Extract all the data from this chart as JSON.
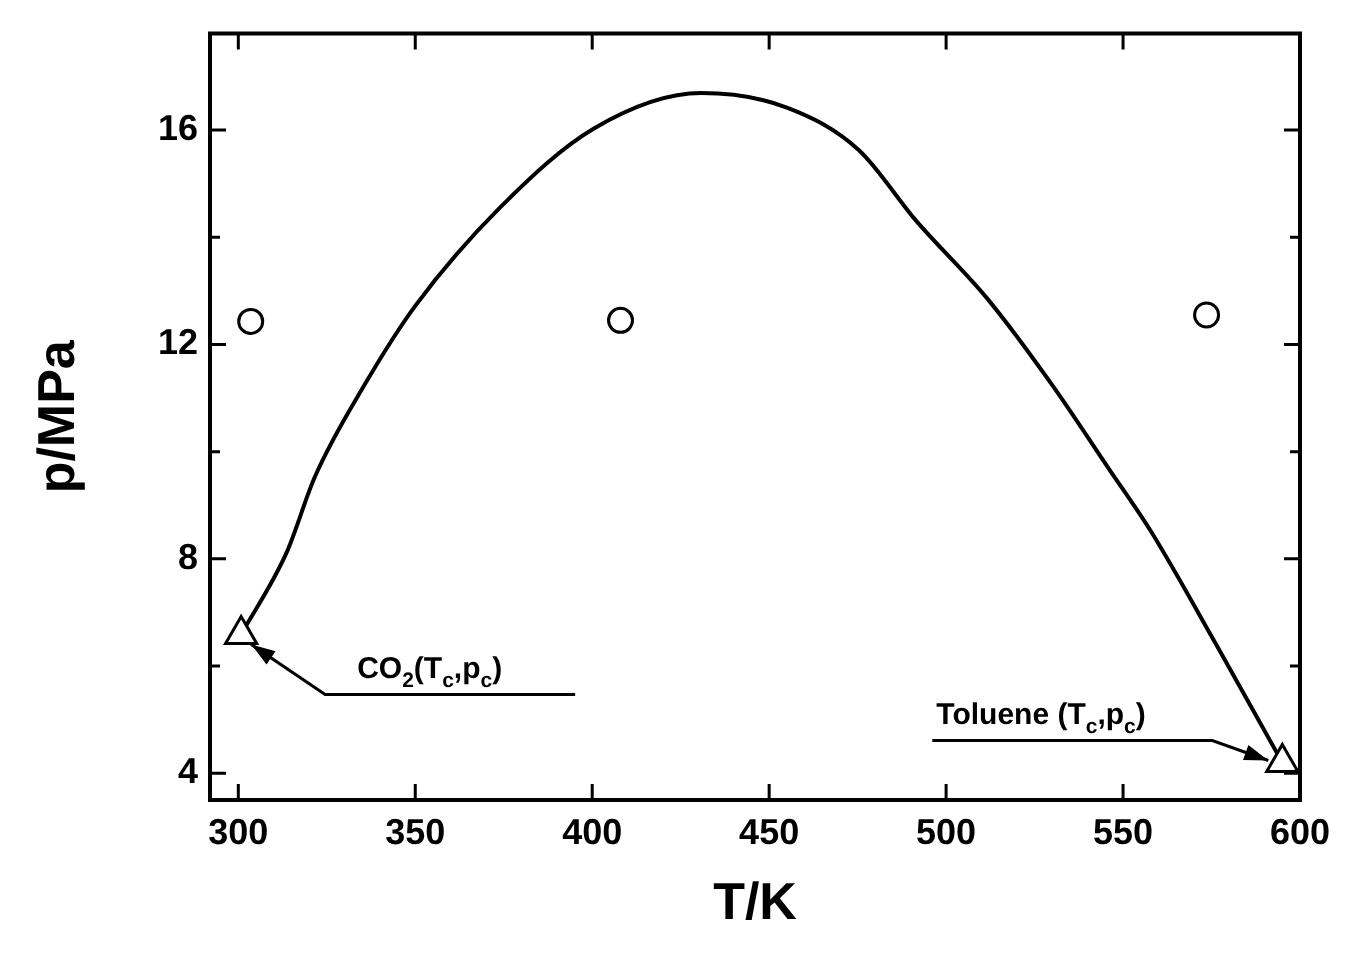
{
  "chart_data": {
    "type": "scatter",
    "xlabel": "T/K",
    "ylabel": "p/MPa",
    "xlim": [
      292,
      600
    ],
    "ylim": [
      3.5,
      17.8
    ],
    "xticks": [
      300,
      350,
      400,
      450,
      500,
      550,
      600
    ],
    "yticks": [
      4,
      8,
      12,
      16
    ],
    "grid": false,
    "legend": false,
    "series": [
      {
        "type": "line",
        "color": "#000000",
        "marker": "none",
        "x": [
          300.8,
          313.6,
          321.7,
          335.8,
          350,
          374.2,
          400.5,
          430.8,
          455,
          475.3,
          491.5,
          511.7,
          529.8,
          546,
          558,
          576.4,
          595
        ],
        "values": [
          6.59,
          8.11,
          9.54,
          11.26,
          12.72,
          14.57,
          16.03,
          16.69,
          16.42,
          15.63,
          14.31,
          12.85,
          11.26,
          9.68,
          8.5,
          6.39,
          4.2
        ]
      },
      {
        "color": "#000000",
        "marker": "circle",
        "x": [
          303.5,
          408,
          573.6
        ],
        "values": [
          12.43,
          12.45,
          12.55
        ]
      },
      {
        "color": "#000000",
        "marker": "triangle",
        "x": [
          300.8,
          595
        ],
        "values": [
          6.59,
          4.2
        ]
      }
    ],
    "annotations": [
      {
        "text": "CO$_{2}$(T$_{c}$,p$_{c}$)",
        "x": 300.8,
        "y": 6.59
      },
      {
        "text": "Toluene (T$_{c}$,p$_{c}$)",
        "x": 595,
        "y": 4.2
      }
    ]
  }
}
